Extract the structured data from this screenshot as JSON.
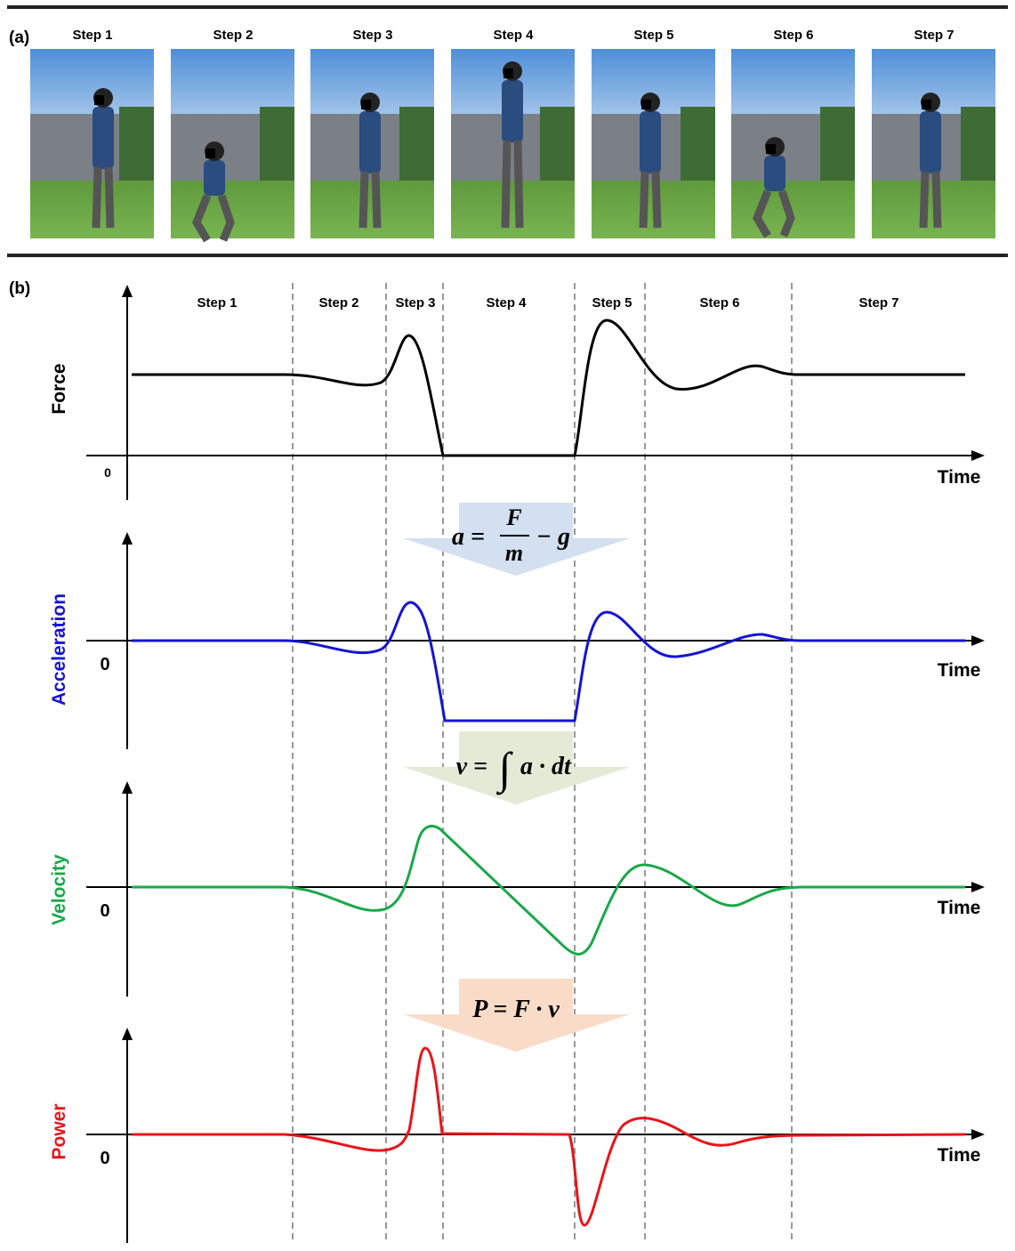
{
  "panel_a": {
    "label": "(a)",
    "steps": [
      "Step 1",
      "Step 2",
      "Step 3",
      "Step 4",
      "Step 5",
      "Step 6",
      "Step 7"
    ]
  },
  "panel_b": {
    "label": "(b)",
    "steps": [
      "Step 1",
      "Step 2",
      "Step 3",
      "Step 4",
      "Step 5",
      "Step 6",
      "Step 7"
    ],
    "plots": [
      {
        "ylabel": "Force",
        "zero": "0",
        "xlabel": "Time"
      },
      {
        "ylabel": "Acceleration",
        "zero": "0",
        "xlabel": "Time"
      },
      {
        "ylabel": "Velocity",
        "zero": "0",
        "xlabel": "Time"
      },
      {
        "ylabel": "Power",
        "zero": "0",
        "xlabel": "Time"
      }
    ],
    "formulas": [
      {
        "lhs": "a =",
        "numerator": "F",
        "denominator": "m",
        "rhs": "− g"
      },
      {
        "lhs": "v =",
        "integral": "∫",
        "rhs": "a · dt"
      },
      {
        "lhs": "P = F · v"
      }
    ]
  }
}
